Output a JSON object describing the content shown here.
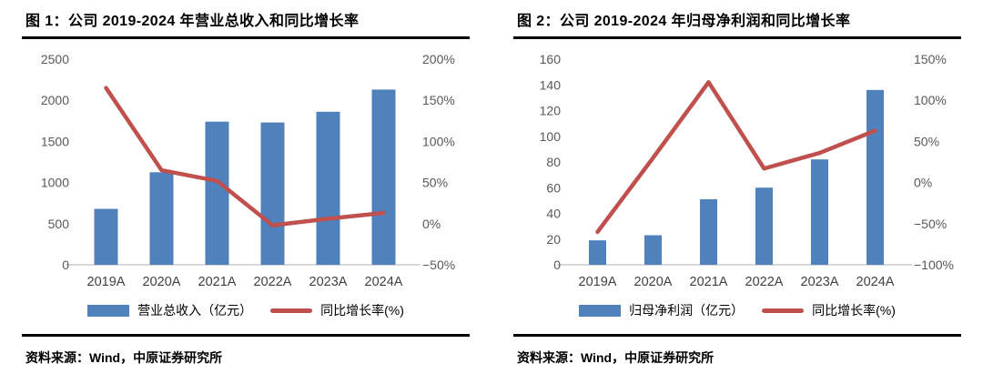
{
  "colors": {
    "bar_blue": "#4f81bd",
    "line_red": "#c0504d",
    "axis_text": "#595959",
    "category_text": "#404040",
    "baseline": "#d9d9d9",
    "rule_black": "#000000"
  },
  "figures": [
    {
      "source": "资料来源：Wind，中原证券研究所"
    },
    {
      "source": "资料来源：Wind，中原证券研究所"
    }
  ],
  "chart_data": [
    {
      "type": "bar+line",
      "title": "图 1：公司 2019-2024 年营业总收入和同比增长率",
      "categories": [
        "2019A",
        "2020A",
        "2021A",
        "2022A",
        "2023A",
        "2024A"
      ],
      "series": [
        {
          "name": "营业总收入（亿元）",
          "type": "bar",
          "axis": "left",
          "color": "#4f81bd",
          "values": [
            680,
            1125,
            1740,
            1730,
            1860,
            2130
          ]
        },
        {
          "name": "同比增长率(%)",
          "type": "line",
          "axis": "right",
          "color": "#c0504d",
          "values": [
            165,
            65,
            52,
            -2,
            6,
            13
          ]
        }
      ],
      "left_axis": {
        "min": 0,
        "max": 2500,
        "ticks": [
          "2500",
          "2000",
          "1500",
          "1000",
          "500",
          "0"
        ]
      },
      "right_axis": {
        "min": -50,
        "max": 200,
        "ticks": [
          "200%",
          "150%",
          "100%",
          "50%",
          "0%",
          "−50%"
        ]
      },
      "grid": false,
      "legend_position": "bottom"
    },
    {
      "type": "bar+line",
      "title": "图 2：公司 2019-2024 年归母净利润和同比增长率",
      "categories": [
        "2019A",
        "2020A",
        "2021A",
        "2022A",
        "2023A",
        "2024A"
      ],
      "series": [
        {
          "name": "归母净利润（亿元）",
          "type": "bar",
          "axis": "left",
          "color": "#4f81bd",
          "values": [
            19,
            23,
            51,
            60,
            82,
            136
          ]
        },
        {
          "name": "同比增长率(%)",
          "type": "line",
          "axis": "right",
          "color": "#c0504d",
          "values": [
            -60,
            30,
            122,
            17,
            36,
            63
          ]
        }
      ],
      "left_axis": {
        "min": 0,
        "max": 160,
        "ticks": [
          "160",
          "140",
          "120",
          "100",
          "80",
          "60",
          "40",
          "20",
          "0"
        ]
      },
      "right_axis": {
        "min": -100,
        "max": 150,
        "ticks": [
          "150%",
          "100%",
          "50%",
          "0%",
          "−50%",
          "−100%"
        ]
      },
      "grid": false,
      "legend_position": "bottom"
    }
  ]
}
